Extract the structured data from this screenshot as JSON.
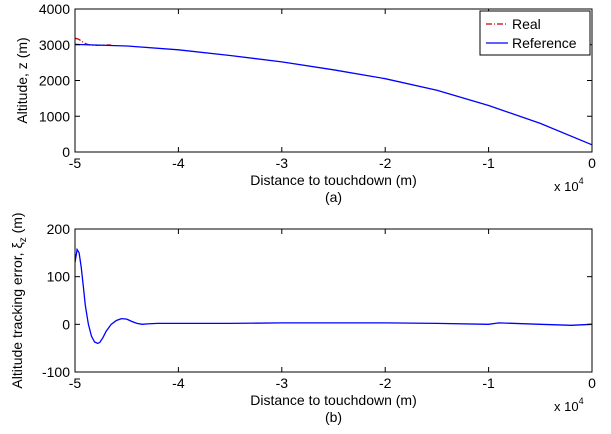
{
  "chart_data": [
    {
      "type": "line",
      "panel_label": "(a)",
      "xlabel": "Distance to touchdown (m)",
      "ylabel": "Altitude, z (m)",
      "x_multiplier": "x 10",
      "x_multiplier_exp": "4",
      "xlim": [
        -5,
        0
      ],
      "ylim": [
        0,
        4000
      ],
      "xticks": [
        -5,
        -4,
        -3,
        -2,
        -1,
        0
      ],
      "yticks": [
        0,
        1000,
        2000,
        3000,
        4000
      ],
      "legend_position": "top-right",
      "grid": false,
      "series": [
        {
          "name": "Real",
          "color": "#cc0000",
          "style": "dash-dot",
          "x": [
            -5.0,
            -4.97,
            -4.94,
            -4.91,
            -4.88,
            -4.85,
            -4.8,
            -4.75,
            -4.7,
            -4.65
          ],
          "y": [
            3180,
            3160,
            3110,
            3050,
            3010,
            2990,
            2985,
            2990,
            2993,
            2992
          ]
        },
        {
          "name": "Reference",
          "color": "#0000ff",
          "style": "solid",
          "x": [
            -5.0,
            -4.5,
            -4.0,
            -3.5,
            -3.0,
            -2.5,
            -2.0,
            -1.5,
            -1.0,
            -0.5,
            0.0
          ],
          "y": [
            3010,
            2965,
            2860,
            2700,
            2520,
            2300,
            2050,
            1730,
            1300,
            800,
            200
          ]
        }
      ]
    },
    {
      "type": "line",
      "panel_label": "(b)",
      "xlabel": "Distance to touchdown (m)",
      "ylabel": "Altitude tracking error, ξ",
      "ylabel_sub": "z",
      "ylabel_unit": " (m)",
      "x_multiplier": "x 10",
      "x_multiplier_exp": "4",
      "xlim": [
        -5,
        0
      ],
      "ylim": [
        -100,
        200
      ],
      "xticks": [
        -5,
        -4,
        -3,
        -2,
        -1,
        0
      ],
      "yticks": [
        -100,
        0,
        100,
        200
      ],
      "grid": false,
      "series": [
        {
          "color": "#0000ff",
          "style": "solid",
          "x": [
            -5.0,
            -4.98,
            -4.96,
            -4.94,
            -4.92,
            -4.9,
            -4.87,
            -4.84,
            -4.81,
            -4.78,
            -4.76,
            -4.73,
            -4.7,
            -4.65,
            -4.6,
            -4.55,
            -4.5,
            -4.45,
            -4.4,
            -4.35,
            -4.3,
            -4.2,
            -4.0,
            -3.5,
            -3.0,
            -2.5,
            -2.0,
            -1.5,
            -1.0,
            -0.9,
            -0.5,
            -0.2,
            0.0
          ],
          "y": [
            130,
            157,
            150,
            120,
            80,
            40,
            0,
            -25,
            -37,
            -40,
            -38,
            -28,
            -15,
            0,
            8,
            12,
            11,
            6,
            2,
            0,
            1,
            2,
            2,
            2,
            3,
            3,
            3,
            2,
            0,
            3,
            0,
            -2,
            0
          ]
        }
      ]
    }
  ]
}
